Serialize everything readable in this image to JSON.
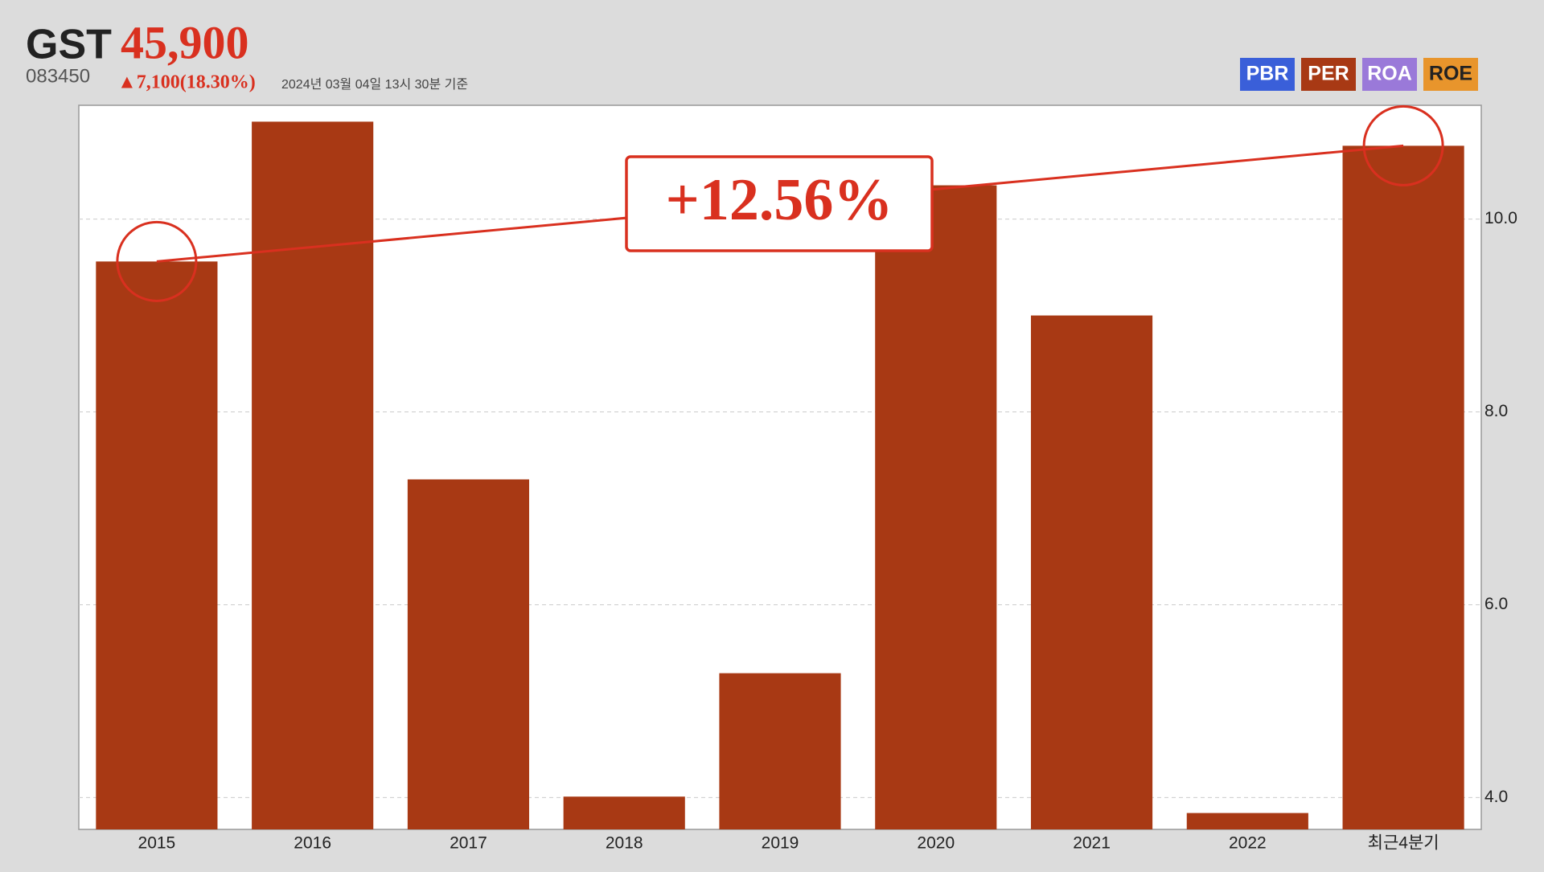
{
  "header": {
    "name": "GST",
    "price": "45,900",
    "code": "083450",
    "change": "▲7,100(18.30%)",
    "date": "2024년 03월 04일 13시 30분 기준"
  },
  "tabs": [
    {
      "label": "PBR",
      "color": "#3a5fd9"
    },
    {
      "label": "PER",
      "color": "#a83914"
    },
    {
      "label": "ROA",
      "color": "#9a79d9"
    },
    {
      "label": "ROE",
      "color": "#e8952c"
    }
  ],
  "chart_data": {
    "type": "bar",
    "categories": [
      "2015",
      "2016",
      "2017",
      "2018",
      "2019",
      "2020",
      "2021",
      "2022",
      "최근4분기"
    ],
    "values": [
      9.56,
      11.01,
      7.3,
      4.01,
      5.29,
      10.35,
      9.0,
      3.84,
      10.76
    ],
    "color": "#a83914",
    "ylim": [
      3.67,
      11.18
    ],
    "yticks": [
      {
        "value": 4,
        "label": "4.0"
      },
      {
        "value": 6,
        "label": "6.0"
      },
      {
        "value": 8,
        "label": "8.0"
      },
      {
        "value": 10,
        "label": "10.0"
      }
    ],
    "grid": true,
    "annotation": "+12.56%"
  }
}
